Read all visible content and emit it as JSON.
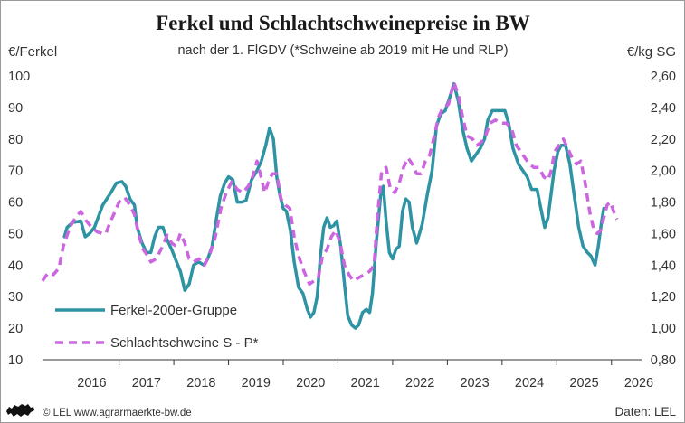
{
  "chart_data": {
    "type": "line",
    "title": "Ferkel und Schlachtschweinepreise in BW",
    "subtitle": "nach der 1. FlGDV (*Schweine ab 2019 mit He und RLP)",
    "ylabel_left": "€/Ferkel",
    "ylabel_right": "€/kg SG",
    "ylim_left": [
      10,
      100
    ],
    "yticks_left": [
      "100",
      "90",
      "80",
      "70",
      "60",
      "50",
      "40",
      "30",
      "20",
      "10"
    ],
    "ylim_right": [
      0.8,
      2.6
    ],
    "yticks_right": [
      "2,60",
      "2,40",
      "2,20",
      "2,00",
      "1,80",
      "1,60",
      "1,40",
      "1,20",
      "1,00",
      "0,80"
    ],
    "xlim": [
      2015.6,
      2026.55
    ],
    "x_tick_labels": [
      "2016",
      "2017",
      "2018",
      "2019",
      "2020",
      "2021",
      "2022",
      "2023",
      "2024",
      "2025",
      "2026"
    ],
    "grid": false,
    "legend_placement": "bottom-left",
    "series": [
      {
        "name": "Ferkel-200er-Gruppe",
        "axis": "left",
        "color": "#2e93a3",
        "style": "solid",
        "points": [
          [
            2016.0,
            49
          ],
          [
            2016.05,
            52
          ],
          [
            2016.15,
            53.5
          ],
          [
            2016.3,
            54
          ],
          [
            2016.38,
            49
          ],
          [
            2016.46,
            50
          ],
          [
            2016.55,
            52
          ],
          [
            2016.7,
            59
          ],
          [
            2016.85,
            63
          ],
          [
            2016.95,
            66
          ],
          [
            2017.05,
            66.5
          ],
          [
            2017.12,
            65
          ],
          [
            2017.2,
            61
          ],
          [
            2017.28,
            59
          ],
          [
            2017.33,
            52
          ],
          [
            2017.42,
            47
          ],
          [
            2017.5,
            44
          ],
          [
            2017.58,
            44
          ],
          [
            2017.65,
            49
          ],
          [
            2017.72,
            52
          ],
          [
            2017.8,
            52
          ],
          [
            2017.88,
            48
          ],
          [
            2017.96,
            45
          ],
          [
            2018.05,
            41
          ],
          [
            2018.12,
            38
          ],
          [
            2018.2,
            32
          ],
          [
            2018.28,
            34
          ],
          [
            2018.36,
            40
          ],
          [
            2018.45,
            41
          ],
          [
            2018.55,
            40
          ],
          [
            2018.62,
            42
          ],
          [
            2018.7,
            46
          ],
          [
            2018.78,
            55
          ],
          [
            2018.85,
            62
          ],
          [
            2018.93,
            66
          ],
          [
            2019.0,
            68
          ],
          [
            2019.08,
            67
          ],
          [
            2019.16,
            60
          ],
          [
            2019.24,
            60
          ],
          [
            2019.32,
            60.5
          ],
          [
            2019.42,
            67
          ],
          [
            2019.52,
            70
          ],
          [
            2019.6,
            73
          ],
          [
            2019.68,
            78
          ],
          [
            2019.75,
            83.5
          ],
          [
            2019.82,
            80
          ],
          [
            2019.88,
            68
          ],
          [
            2019.94,
            62
          ],
          [
            2020.0,
            58
          ],
          [
            2020.06,
            57
          ],
          [
            2020.13,
            51
          ],
          [
            2020.2,
            41
          ],
          [
            2020.28,
            33
          ],
          [
            2020.36,
            31
          ],
          [
            2020.44,
            26
          ],
          [
            2020.5,
            23.5
          ],
          [
            2020.56,
            25
          ],
          [
            2020.62,
            30
          ],
          [
            2020.68,
            43
          ],
          [
            2020.74,
            52
          ],
          [
            2020.8,
            55
          ],
          [
            2020.86,
            52
          ],
          [
            2020.92,
            52.5
          ],
          [
            2020.98,
            54
          ],
          [
            2021.05,
            46
          ],
          [
            2021.12,
            34
          ],
          [
            2021.18,
            24
          ],
          [
            2021.25,
            21
          ],
          [
            2021.32,
            20
          ],
          [
            2021.38,
            21
          ],
          [
            2021.45,
            25
          ],
          [
            2021.52,
            26
          ],
          [
            2021.58,
            25
          ],
          [
            2021.63,
            31
          ],
          [
            2021.7,
            47
          ],
          [
            2021.78,
            62
          ],
          [
            2021.83,
            65
          ],
          [
            2021.88,
            54
          ],
          [
            2021.94,
            44
          ],
          [
            2022.0,
            42
          ],
          [
            2022.06,
            45
          ],
          [
            2022.12,
            46
          ],
          [
            2022.18,
            57
          ],
          [
            2022.24,
            61
          ],
          [
            2022.3,
            60
          ],
          [
            2022.36,
            52
          ],
          [
            2022.44,
            47
          ],
          [
            2022.54,
            53
          ],
          [
            2022.64,
            63
          ],
          [
            2022.72,
            70
          ],
          [
            2022.8,
            84
          ],
          [
            2022.88,
            88
          ],
          [
            2022.96,
            89
          ],
          [
            2023.04,
            93
          ],
          [
            2023.12,
            97.5
          ],
          [
            2023.2,
            92
          ],
          [
            2023.28,
            83
          ],
          [
            2023.36,
            77
          ],
          [
            2023.44,
            73
          ],
          [
            2023.52,
            75
          ],
          [
            2023.6,
            77
          ],
          [
            2023.68,
            80
          ],
          [
            2023.74,
            86
          ],
          [
            2023.82,
            89
          ],
          [
            2023.95,
            89
          ],
          [
            2024.05,
            89
          ],
          [
            2024.12,
            85
          ],
          [
            2024.2,
            77
          ],
          [
            2024.3,
            72
          ],
          [
            2024.38,
            70
          ],
          [
            2024.46,
            68
          ],
          [
            2024.54,
            64
          ],
          [
            2024.64,
            64
          ],
          [
            2024.72,
            57
          ],
          [
            2024.78,
            52
          ],
          [
            2024.84,
            55
          ],
          [
            2024.9,
            63
          ],
          [
            2024.95,
            70
          ],
          [
            2025.02,
            76
          ],
          [
            2025.08,
            78
          ],
          [
            2025.16,
            78
          ],
          [
            2025.24,
            72
          ],
          [
            2025.32,
            62
          ],
          [
            2025.4,
            52
          ],
          [
            2025.48,
            46
          ],
          [
            2025.56,
            44
          ],
          [
            2025.62,
            43
          ],
          [
            2025.7,
            40
          ],
          [
            2025.76,
            46
          ],
          [
            2025.82,
            54
          ],
          [
            2025.86,
            58
          ]
        ]
      },
      {
        "name": "Schlachtschweine S - P*",
        "axis": "right",
        "color": "#cc66e0",
        "style": "dashed",
        "points": [
          [
            2015.6,
            1.3
          ],
          [
            2015.7,
            1.35
          ],
          [
            2015.8,
            1.34
          ],
          [
            2015.9,
            1.38
          ],
          [
            2015.98,
            1.52
          ],
          [
            2016.1,
            1.64
          ],
          [
            2016.2,
            1.7
          ],
          [
            2016.3,
            1.74
          ],
          [
            2016.4,
            1.68
          ],
          [
            2016.5,
            1.64
          ],
          [
            2016.6,
            1.61
          ],
          [
            2016.7,
            1.6
          ],
          [
            2016.76,
            1.6
          ],
          [
            2016.82,
            1.66
          ],
          [
            2016.9,
            1.72
          ],
          [
            2017.0,
            1.8
          ],
          [
            2017.1,
            1.83
          ],
          [
            2017.2,
            1.78
          ],
          [
            2017.28,
            1.72
          ],
          [
            2017.36,
            1.59
          ],
          [
            2017.44,
            1.5
          ],
          [
            2017.52,
            1.46
          ],
          [
            2017.58,
            1.42
          ],
          [
            2017.68,
            1.44
          ],
          [
            2017.78,
            1.51
          ],
          [
            2017.88,
            1.59
          ],
          [
            2017.96,
            1.54
          ],
          [
            2018.04,
            1.52
          ],
          [
            2018.12,
            1.6
          ],
          [
            2018.2,
            1.54
          ],
          [
            2018.28,
            1.44
          ],
          [
            2018.36,
            1.42
          ],
          [
            2018.46,
            1.44
          ],
          [
            2018.56,
            1.4
          ],
          [
            2018.66,
            1.47
          ],
          [
            2018.76,
            1.58
          ],
          [
            2018.86,
            1.76
          ],
          [
            2018.96,
            1.86
          ],
          [
            2019.06,
            1.93
          ],
          [
            2019.16,
            1.88
          ],
          [
            2019.26,
            1.86
          ],
          [
            2019.36,
            1.9
          ],
          [
            2019.44,
            1.96
          ],
          [
            2019.52,
            2.06
          ],
          [
            2019.58,
            1.98
          ],
          [
            2019.66,
            1.86
          ],
          [
            2019.72,
            1.92
          ],
          [
            2019.8,
            1.98
          ],
          [
            2019.88,
            1.98
          ],
          [
            2019.96,
            1.82
          ],
          [
            2020.04,
            1.78
          ],
          [
            2020.12,
            1.76
          ],
          [
            2020.2,
            1.58
          ],
          [
            2020.28,
            1.46
          ],
          [
            2020.38,
            1.36
          ],
          [
            2020.48,
            1.28
          ],
          [
            2020.56,
            1.3
          ],
          [
            2020.64,
            1.32
          ],
          [
            2020.72,
            1.46
          ],
          [
            2020.8,
            1.5
          ],
          [
            2020.88,
            1.58
          ],
          [
            2020.96,
            1.62
          ],
          [
            2021.04,
            1.54
          ],
          [
            2021.12,
            1.4
          ],
          [
            2021.2,
            1.34
          ],
          [
            2021.28,
            1.3
          ],
          [
            2021.38,
            1.32
          ],
          [
            2021.48,
            1.34
          ],
          [
            2021.58,
            1.36
          ],
          [
            2021.66,
            1.4
          ],
          [
            2021.72,
            1.7
          ],
          [
            2021.8,
            2.0
          ],
          [
            2021.88,
            2.02
          ],
          [
            2021.96,
            1.88
          ],
          [
            2022.04,
            1.86
          ],
          [
            2022.12,
            1.92
          ],
          [
            2022.2,
            2.02
          ],
          [
            2022.28,
            2.08
          ],
          [
            2022.36,
            2.04
          ],
          [
            2022.44,
            1.98
          ],
          [
            2022.52,
            1.98
          ],
          [
            2022.6,
            2.06
          ],
          [
            2022.68,
            2.1
          ],
          [
            2022.76,
            2.22
          ],
          [
            2022.84,
            2.34
          ],
          [
            2022.92,
            2.4
          ],
          [
            2023.02,
            2.42
          ],
          [
            2023.12,
            2.56
          ],
          [
            2023.2,
            2.48
          ],
          [
            2023.28,
            2.34
          ],
          [
            2023.36,
            2.22
          ],
          [
            2023.46,
            2.2
          ],
          [
            2023.54,
            2.16
          ],
          [
            2023.62,
            2.18
          ],
          [
            2023.7,
            2.22
          ],
          [
            2023.78,
            2.3
          ],
          [
            2023.88,
            2.32
          ],
          [
            2023.98,
            2.3
          ],
          [
            2024.08,
            2.3
          ],
          [
            2024.18,
            2.26
          ],
          [
            2024.26,
            2.16
          ],
          [
            2024.34,
            2.12
          ],
          [
            2024.42,
            2.08
          ],
          [
            2024.5,
            2.04
          ],
          [
            2024.58,
            2.02
          ],
          [
            2024.68,
            2.02
          ],
          [
            2024.76,
            1.96
          ],
          [
            2024.84,
            1.94
          ],
          [
            2024.9,
            2.0
          ],
          [
            2024.96,
            2.12
          ],
          [
            2025.04,
            2.16
          ],
          [
            2025.12,
            2.2
          ],
          [
            2025.2,
            2.14
          ],
          [
            2025.28,
            2.08
          ],
          [
            2025.36,
            2.04
          ],
          [
            2025.44,
            2.06
          ],
          [
            2025.52,
            1.92
          ],
          [
            2025.6,
            1.74
          ],
          [
            2025.68,
            1.62
          ],
          [
            2025.74,
            1.6
          ],
          [
            2025.8,
            1.62
          ],
          [
            2025.86,
            1.7
          ],
          [
            2025.92,
            1.78
          ],
          [
            2025.98,
            1.8
          ],
          [
            2026.04,
            1.74
          ],
          [
            2026.1,
            1.69
          ]
        ]
      }
    ]
  },
  "footer": {
    "copyright": "© LEL www.agrarmaerkte-bw.de",
    "source": "Daten: LEL",
    "logo_icon": "lion-icon"
  }
}
